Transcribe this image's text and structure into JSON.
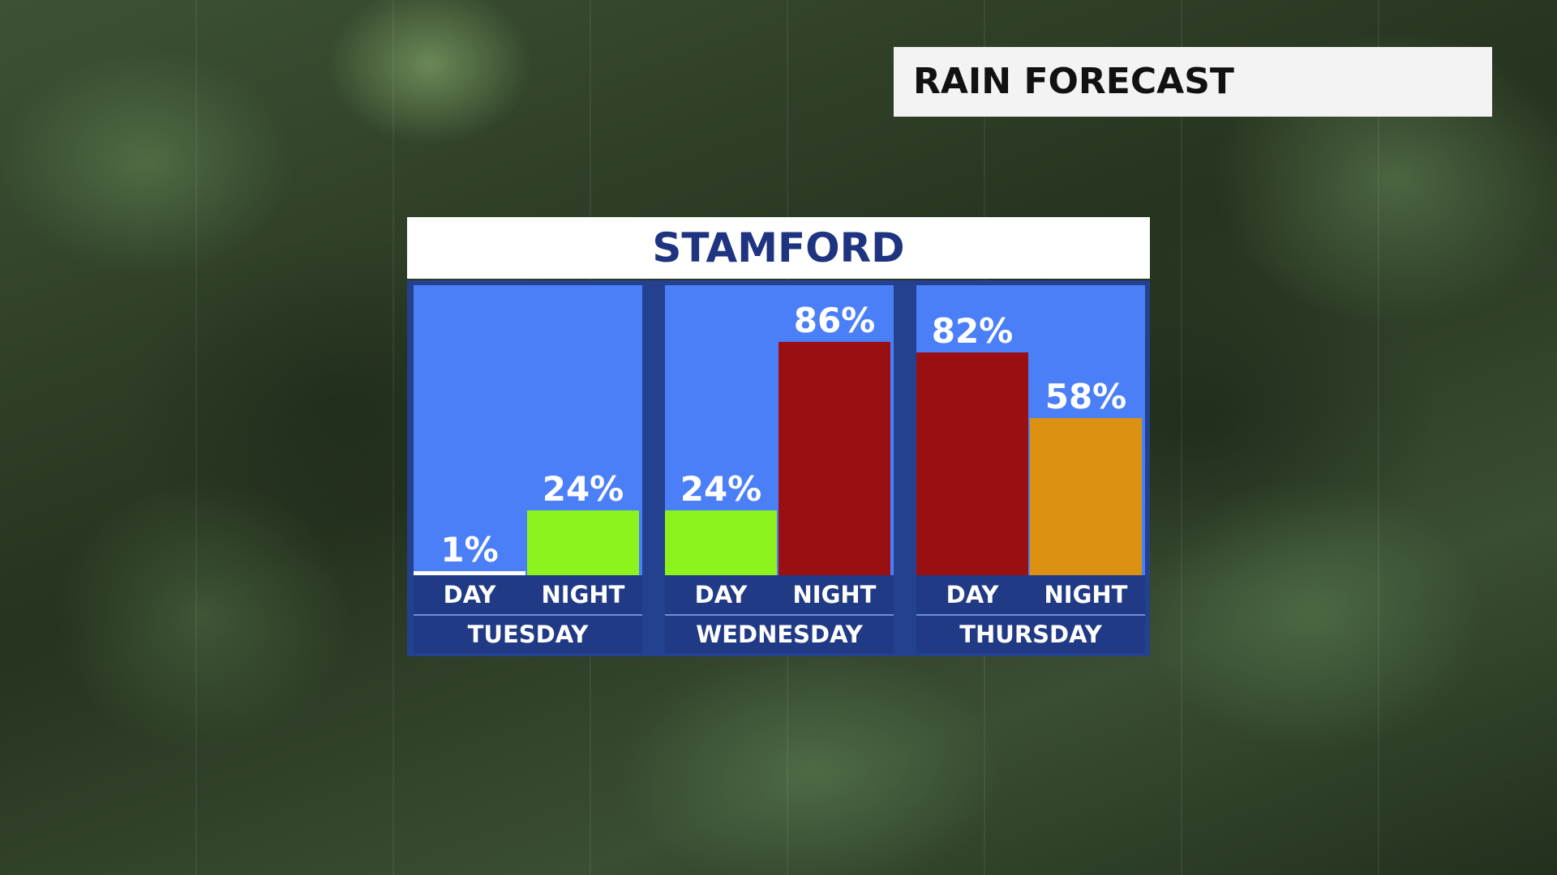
{
  "header": {
    "title": "RAIN FORECAST"
  },
  "colors": {
    "panel_background": "#4b7ff7",
    "frame": "#24418f",
    "low": "#ffffff",
    "moderate": "#8cf41c",
    "high": "#990f12",
    "medium_high": "#dc9112",
    "city_text": "#1f3480"
  },
  "chart_data": {
    "type": "bar",
    "title": "STAMFORD",
    "xlabel": "",
    "ylabel": "",
    "ylim": [
      0,
      100
    ],
    "unit": "%",
    "groups": [
      {
        "name": "TUESDAY",
        "periods": [
          {
            "label": "DAY",
            "value": 1,
            "display": "1%",
            "color": "#ffffff"
          },
          {
            "label": "NIGHT",
            "value": 24,
            "display": "24%",
            "color": "#8cf41c"
          }
        ]
      },
      {
        "name": "WEDNESDAY",
        "periods": [
          {
            "label": "DAY",
            "value": 24,
            "display": "24%",
            "color": "#8cf41c"
          },
          {
            "label": "NIGHT",
            "value": 86,
            "display": "86%",
            "color": "#990f12"
          }
        ]
      },
      {
        "name": "THURSDAY",
        "periods": [
          {
            "label": "DAY",
            "value": 82,
            "display": "82%",
            "color": "#990f12"
          },
          {
            "label": "NIGHT",
            "value": 58,
            "display": "58%",
            "color": "#dc9112"
          }
        ]
      }
    ]
  }
}
